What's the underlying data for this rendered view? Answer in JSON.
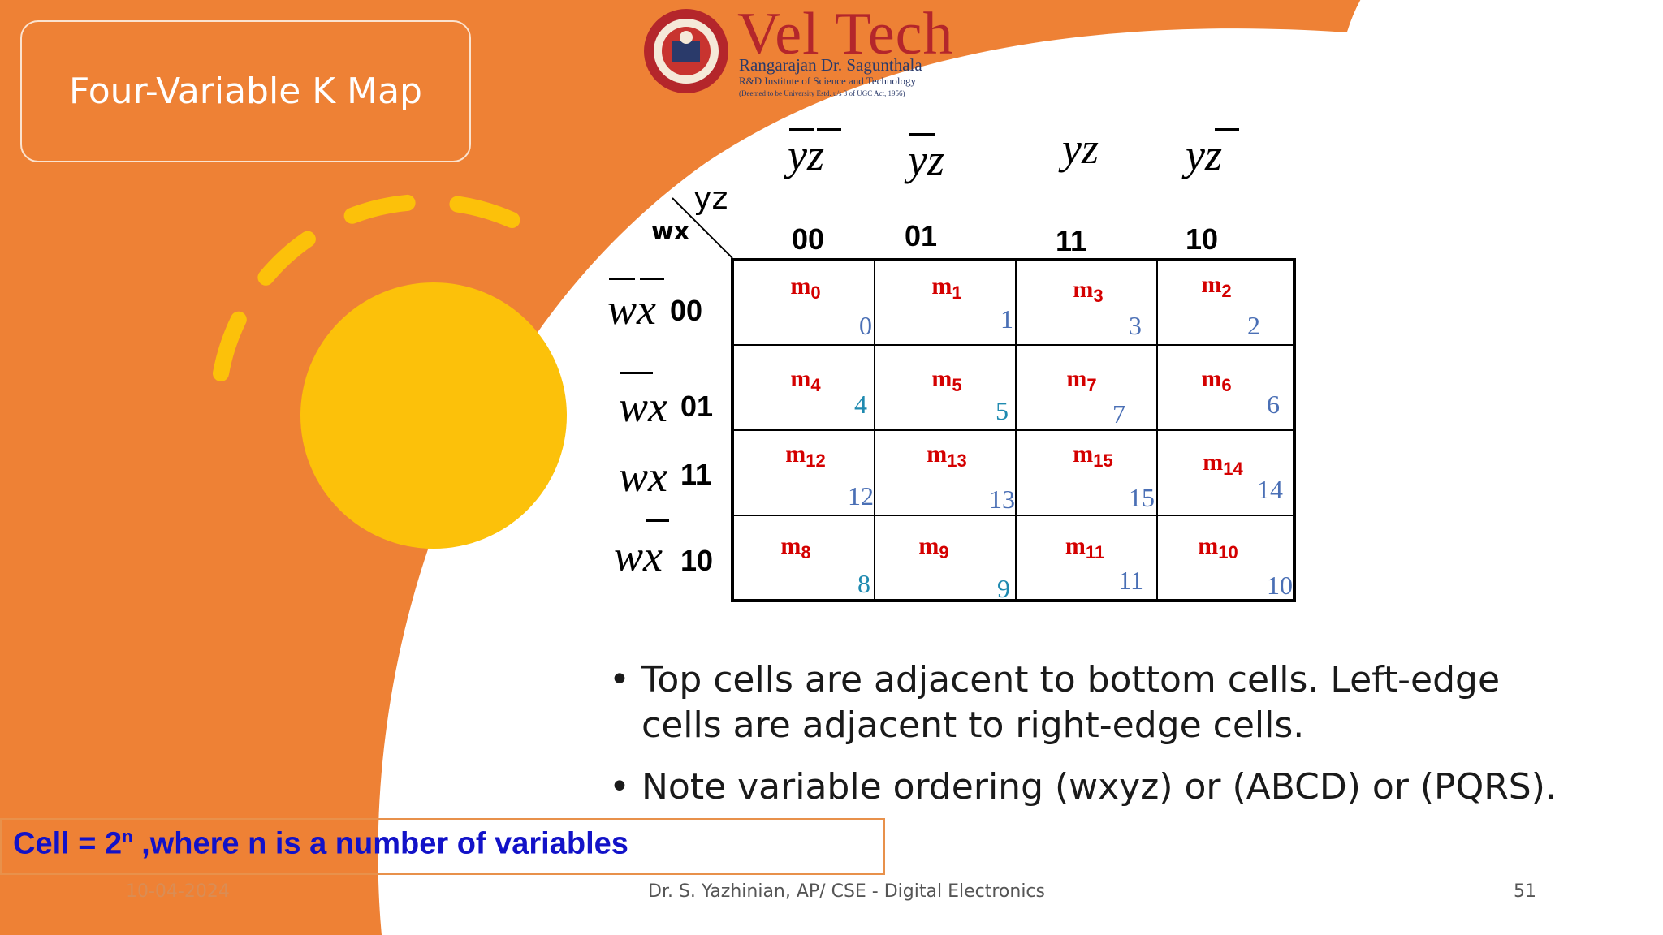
{
  "slide": {
    "title": "Four-Variable K Map",
    "footer_date": "10-04-2024",
    "footer_author": "Dr. S. Yazhinian, AP/ CSE - Digital Electronics",
    "page_number": "51"
  },
  "logo": {
    "name": "Vel Tech",
    "line1": "Rangarajan Dr. Sagunthala",
    "line2": "R&D Institute of Science and Technology",
    "line3": "(Deemed to be University Estd. u/s 3 of UGC Act, 1956)"
  },
  "kmap": {
    "corner_col_label": "yz",
    "corner_row_label": "wx",
    "columns": [
      {
        "var": "yz",
        "code": "00"
      },
      {
        "var": "yz",
        "code": "01"
      },
      {
        "var": "yz",
        "code": "11"
      },
      {
        "var": "yz",
        "code": "10"
      }
    ],
    "rows": [
      {
        "var": "wx",
        "code": "00"
      },
      {
        "var": "wx",
        "code": "01"
      },
      {
        "var": "wx",
        "code": "11"
      },
      {
        "var": "wx",
        "code": "10"
      }
    ],
    "cells": [
      [
        {
          "m": "m",
          "sub": "0",
          "n": "0"
        },
        {
          "m": "m",
          "sub": "1",
          "n": "1"
        },
        {
          "m": "m",
          "sub": "3",
          "n": "3"
        },
        {
          "m": "m",
          "sub": "2",
          "n": "2"
        }
      ],
      [
        {
          "m": "m",
          "sub": "4",
          "n": "4"
        },
        {
          "m": "m",
          "sub": "5",
          "n": "5"
        },
        {
          "m": "m",
          "sub": "7",
          "n": "7"
        },
        {
          "m": "m",
          "sub": "6",
          "n": "6"
        }
      ],
      [
        {
          "m": "m",
          "sub": "12",
          "n": "12"
        },
        {
          "m": "m",
          "sub": "13",
          "n": "13"
        },
        {
          "m": "m",
          "sub": "15",
          "n": "15"
        },
        {
          "m": "m",
          "sub": "14",
          "n": "14"
        }
      ],
      [
        {
          "m": "m",
          "sub": "8",
          "n": "8"
        },
        {
          "m": "m",
          "sub": "9",
          "n": "9"
        },
        {
          "m": "m",
          "sub": "11",
          "n": "11"
        },
        {
          "m": "m",
          "sub": "10",
          "n": "10"
        }
      ]
    ]
  },
  "bullets": [
    "Top cells are adjacent to bottom cells. Left-edge cells are adjacent to right-edge cells.",
    "Note variable ordering (wxyz) or (ABCD) or (PQRS)."
  ],
  "bullet_char": "•",
  "formula": {
    "pre": "Cell = 2",
    "sup": "n",
    "post": " ,where  n is a number of variables"
  },
  "colors": {
    "background_orange": "#ee8135",
    "sun_yellow": "#fcc10a",
    "minterm_red": "#d40000",
    "formula_blue": "#1212c8"
  }
}
